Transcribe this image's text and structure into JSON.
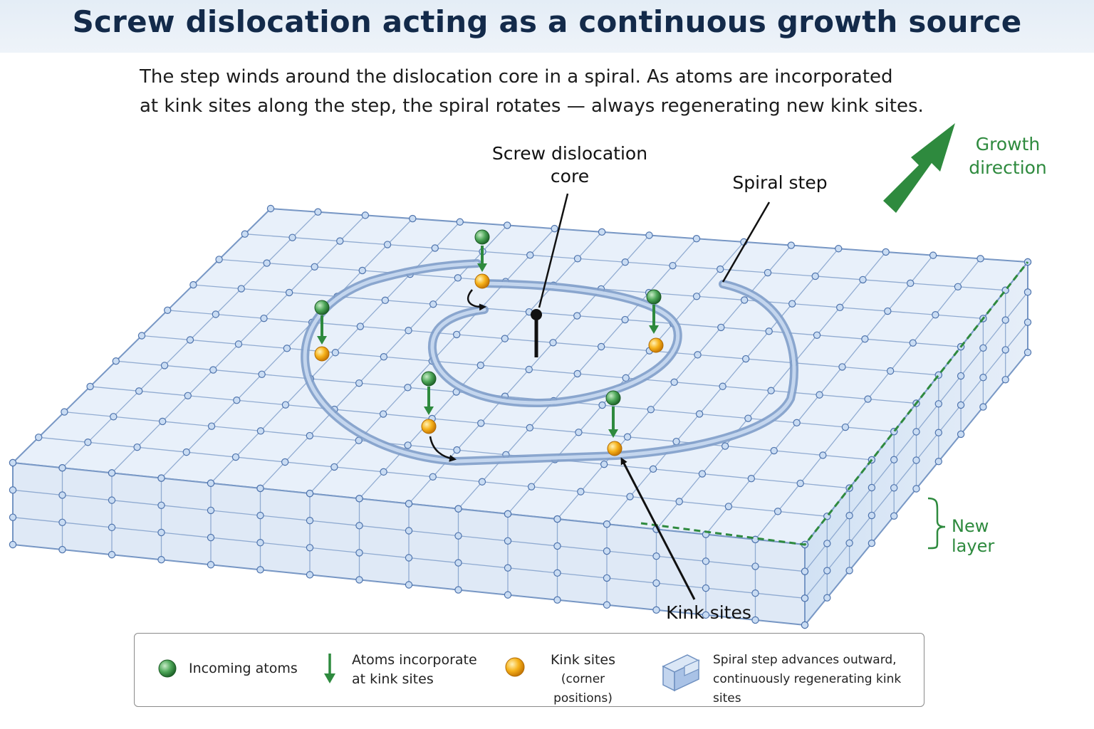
{
  "title": "Screw dislocation acting as a continuous growth source",
  "subtitle": {
    "line1": "The step winds around the dislocation core in a spiral. As atoms are incorporated",
    "line2": "at kink sites along the step, the spiral rotates — always regenerating new kink sites."
  },
  "labels": {
    "core_line1": "Screw dislocation",
    "core_line2": "core",
    "spiral_step": "Spiral step",
    "growth_line1": "Growth",
    "growth_line2": "direction",
    "new_layer": "New layer",
    "kink_sites": "Kink sites"
  },
  "legend": {
    "incoming_atoms": "Incoming atoms",
    "incorporate_line1": "Atoms incorporate",
    "incorporate_line2": "at kink sites",
    "kink_line1": "Kink sites",
    "kink_line2": "(corner positions)",
    "spiral_line1": "Spiral step advances outward,",
    "spiral_line2": "continuously regenerating kink sites"
  },
  "colors": {
    "title": "#132a4a",
    "accent_green": "#2e8a3e",
    "lattice_line": "#7d9cc8",
    "lattice_node": "#c9dcf3",
    "surface": "#e6effa",
    "kink_orange": "#f3a712"
  }
}
